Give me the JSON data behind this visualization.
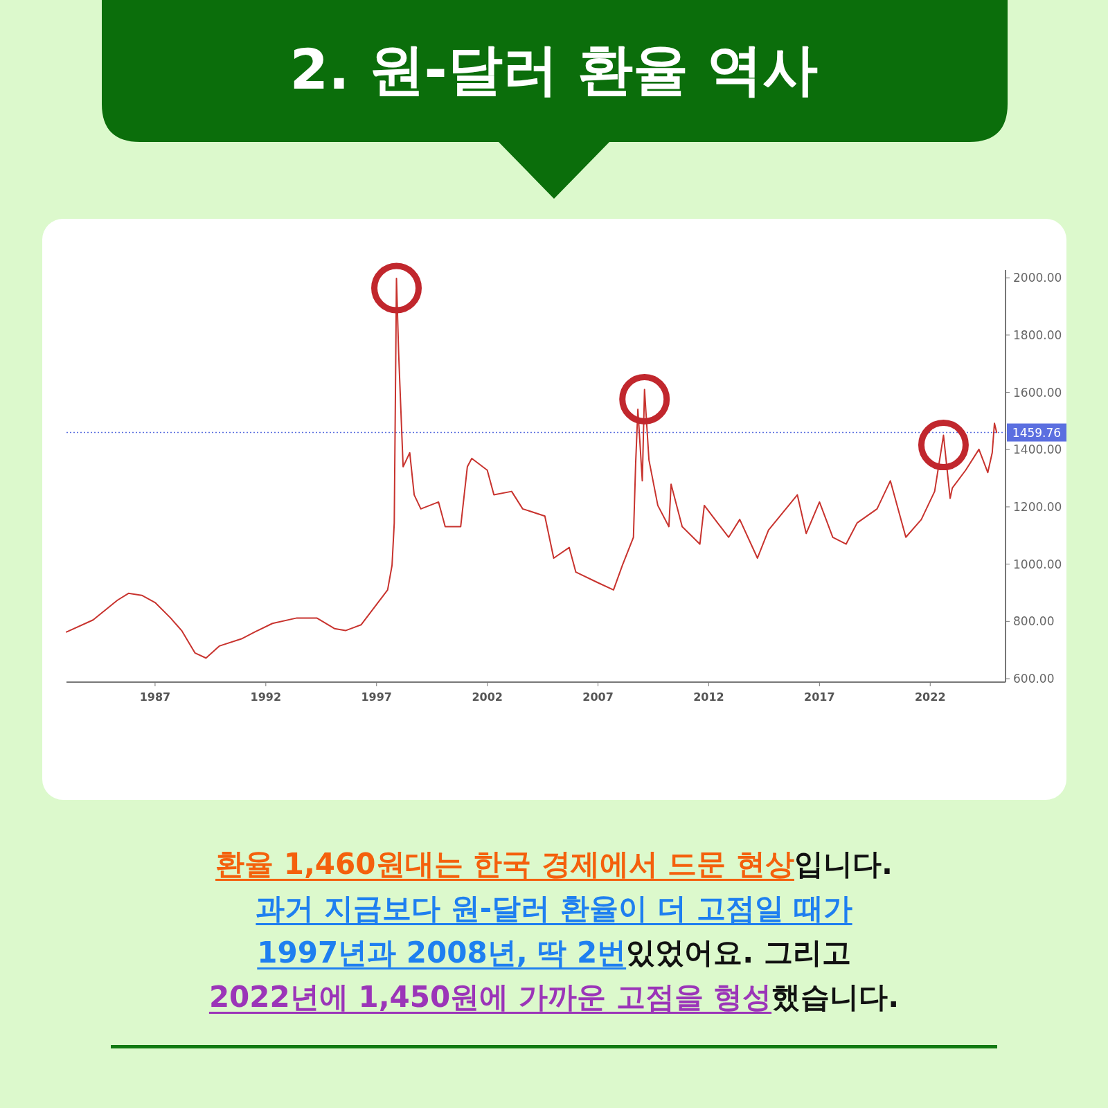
{
  "chart_data": {
    "type": "line",
    "title": "2. 원-달러 환율 역사",
    "x": [
      1983.0,
      1984.2,
      1985.3,
      1985.8,
      1986.4,
      1987.0,
      1987.7,
      1988.2,
      1988.8,
      1989.3,
      1989.9,
      1990.9,
      1991.5,
      1992.3,
      1993.4,
      1994.3,
      1995.1,
      1995.6,
      1996.3,
      1996.9,
      1997.5,
      1997.7,
      1997.8,
      1997.9,
      1998.0,
      1998.1,
      1998.2,
      1998.5,
      1998.7,
      1999.0,
      1999.8,
      2000.1,
      2000.8,
      2001.1,
      2001.3,
      2002.0,
      2002.3,
      2003.1,
      2003.6,
      2004.6,
      2005.0,
      2005.7,
      2006.0,
      2007.0,
      2007.7,
      2008.1,
      2008.6,
      2008.7,
      2008.8,
      2009.0,
      2009.1,
      2009.3,
      2009.7,
      2010.2,
      2010.3,
      2010.8,
      2011.6,
      2011.8,
      2012.4,
      2012.9,
      2013.4,
      2014.2,
      2014.7,
      2016.0,
      2016.4,
      2017.0,
      2017.6,
      2018.2,
      2018.7,
      2019.6,
      2020.2,
      2020.9,
      2021.6,
      2022.2,
      2022.6,
      2022.9,
      2023.0,
      2023.6,
      2024.2,
      2024.6,
      2024.8,
      2024.9,
      2025.0
    ],
    "series": [
      {
        "color": "#c8332e",
        "values": [
          763,
          805,
          874,
          898,
          891,
          866,
          812,
          768,
          690,
          672,
          714,
          739,
          763,
          793,
          812,
          812,
          775,
          768,
          788,
          849,
          910,
          996,
          1144,
          1998,
          1733,
          1536,
          1340,
          1389,
          1242,
          1193,
          1217,
          1131,
          1131,
          1340,
          1369,
          1328,
          1242,
          1254,
          1193,
          1168,
          1021,
          1058,
          972,
          935,
          910,
          996,
          1094,
          1352,
          1541,
          1291,
          1610,
          1364,
          1205,
          1131,
          1279,
          1131,
          1070,
          1205,
          1144,
          1094,
          1156,
          1021,
          1119,
          1242,
          1107,
          1217,
          1094,
          1070,
          1144,
          1193,
          1291,
          1094,
          1156,
          1254,
          1450,
          1230,
          1266,
          1328,
          1401,
          1320,
          1389,
          1492,
          1460
        ]
      }
    ],
    "xlim": [
      1983.0,
      2025.4
    ],
    "xticks": [
      1987,
      1992,
      1997,
      2002,
      2007,
      2012,
      2017,
      2022
    ],
    "ylim": [
      588,
      2027
    ],
    "yticks": [
      {
        "value": 600,
        "label": "600.00"
      },
      {
        "value": 800,
        "label": "800.00"
      },
      {
        "value": 1000,
        "label": "1000.00"
      },
      {
        "value": 1200,
        "label": "1200.00"
      },
      {
        "value": 1400,
        "label": "1400.00"
      },
      {
        "value": 1600,
        "label": "1600.00"
      },
      {
        "value": 1800,
        "label": "1800.00"
      },
      {
        "value": 2000,
        "label": "2000.00"
      }
    ],
    "ref_lines": [
      {
        "axis": "y",
        "value": 1459.76,
        "label": "1459.76",
        "color": "#5b6fe0",
        "line_style": "dotted"
      }
    ],
    "grid": false,
    "marker": "none",
    "line_style": "solid",
    "annotations": [
      "환율 1,460원대는 한국 경제에서 드문 현상",
      "입니다.",
      "과거 지금보다 원-달러 환율이 더 고점일 때가",
      "1997년과 2008년, 딱 2번",
      " 있었어요. 그리고",
      "2022년에 1,450원에 가까운 고점을 형성",
      "했습니다."
    ]
  }
}
